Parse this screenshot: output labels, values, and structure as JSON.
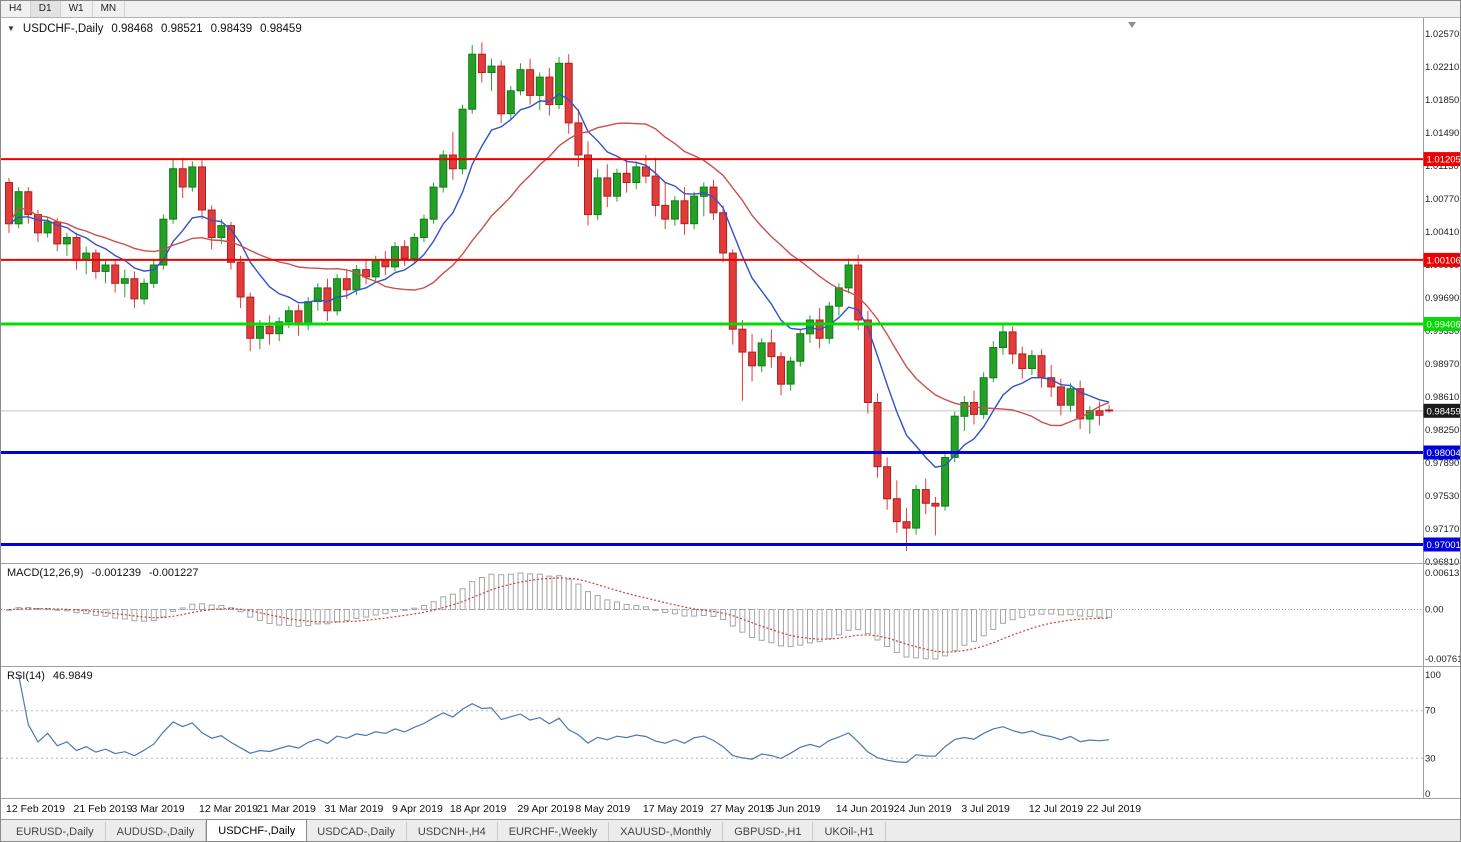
{
  "toolbar": {
    "timeframe_buttons": [
      "H4",
      "D1",
      "W1",
      "MN"
    ],
    "active_timeframe": "D1"
  },
  "symbol_info": {
    "direction_icon": "▼",
    "symbol": "USDCHF-,Daily",
    "open": "0.98468",
    "high": "0.98521",
    "low": "0.98439",
    "close": "0.98459"
  },
  "indicators": {
    "macd": {
      "name": "MACD(12,26,9)",
      "value_main": "-0.001239",
      "value_signal": "-0.001227"
    },
    "rsi": {
      "name": "RSI(14)",
      "value": "46.9849"
    }
  },
  "tabs": [
    {
      "label": "EURUSD-,Daily",
      "active": false
    },
    {
      "label": "AUDUSD-,Daily",
      "active": false
    },
    {
      "label": "USDCHF-,Daily",
      "active": true
    },
    {
      "label": "USDCAD-,Daily",
      "active": false
    },
    {
      "label": "USDCNH-,H4",
      "active": false
    },
    {
      "label": "EURCHF-,Weekly",
      "active": false
    },
    {
      "label": "XAUUSD-,Monthly",
      "active": false
    },
    {
      "label": "GBPUSD-,H1",
      "active": false
    },
    {
      "label": "UKOil-,H1",
      "active": false
    }
  ],
  "chart_data": {
    "type": "candlestick",
    "title": "USDCHF-,Daily",
    "candles": [
      [
        1.0095,
        1.01,
        1.004,
        1.005
      ],
      [
        1.005,
        1.009,
        1.0045,
        1.0085
      ],
      [
        1.0085,
        1.009,
        1.005,
        1.006
      ],
      [
        1.006,
        1.0065,
        1.003,
        1.004
      ],
      [
        1.004,
        1.0058,
        1.0035,
        1.0052
      ],
      [
        1.0052,
        1.0056,
        1.002,
        1.0028
      ],
      [
        1.0028,
        1.004,
        1.0015,
        1.0035
      ],
      [
        1.0035,
        1.004,
        1.0,
        1.001
      ],
      [
        1.001,
        1.0025,
        0.9995,
        1.0018
      ],
      [
        1.0018,
        1.0022,
        0.999,
        0.9998
      ],
      [
        0.9998,
        1.001,
        0.9985,
        1.0005
      ],
      [
        1.0005,
        1.001,
        0.9975,
        0.9985
      ],
      [
        0.9985,
        1.0,
        0.997,
        0.999
      ],
      [
        0.999,
        0.9998,
        0.9958,
        0.9968
      ],
      [
        0.9968,
        0.999,
        0.9962,
        0.9985
      ],
      [
        0.9985,
        1.001,
        0.998,
        1.0005
      ],
      [
        1.0005,
        1.006,
        1.0,
        1.0055
      ],
      [
        1.0055,
        1.012,
        1.005,
        1.011
      ],
      [
        1.011,
        1.0122,
        1.0078,
        1.009
      ],
      [
        1.009,
        1.0118,
        1.0085,
        1.0112
      ],
      [
        1.0112,
        1.0121,
        1.0055,
        1.0065
      ],
      [
        1.0065,
        1.007,
        1.0022,
        1.0035
      ],
      [
        1.0035,
        1.0055,
        1.0028,
        1.0048
      ],
      [
        1.0048,
        1.0052,
        1.0,
        1.0008
      ],
      [
        1.0008,
        1.0015,
        0.9958,
        0.997
      ],
      [
        0.997,
        0.9975,
        0.9911,
        0.9925
      ],
      [
        0.9925,
        0.9945,
        0.9913,
        0.9938
      ],
      [
        0.9938,
        0.995,
        0.9918,
        0.993
      ],
      [
        0.993,
        0.9948,
        0.9922,
        0.9943
      ],
      [
        0.9943,
        0.996,
        0.9936,
        0.9955
      ],
      [
        0.9955,
        0.9962,
        0.9928,
        0.994
      ],
      [
        0.994,
        0.997,
        0.9934,
        0.9965
      ],
      [
        0.9965,
        0.9985,
        0.9955,
        0.998
      ],
      [
        0.998,
        0.999,
        0.9944,
        0.9955
      ],
      [
        0.9955,
        0.9995,
        0.995,
        0.999
      ],
      [
        0.999,
        1.0,
        0.9968,
        0.9978
      ],
      [
        0.9978,
        1.0005,
        0.9972,
        1.0
      ],
      [
        1.0,
        1.001,
        0.9984,
        0.9992
      ],
      [
        0.9992,
        1.0015,
        0.9987,
        1.001
      ],
      [
        1.001,
        1.002,
        0.9994,
        1.0003
      ],
      [
        1.0003,
        1.003,
        0.9998,
        1.0025
      ],
      [
        1.0025,
        1.0032,
        1.0004,
        1.0012
      ],
      [
        1.0012,
        1.004,
        1.0007,
        1.0035
      ],
      [
        1.0035,
        1.006,
        1.003,
        1.0055
      ],
      [
        1.0055,
        1.0095,
        1.005,
        1.009
      ],
      [
        1.009,
        1.013,
        1.0084,
        1.0125
      ],
      [
        1.0125,
        1.015,
        1.0098,
        1.011
      ],
      [
        1.011,
        1.018,
        1.0104,
        1.0175
      ],
      [
        1.0175,
        1.0245,
        1.017,
        1.0235
      ],
      [
        1.0235,
        1.0248,
        1.0204,
        1.0215
      ],
      [
        1.0215,
        1.023,
        1.0195,
        1.0222
      ],
      [
        1.0222,
        1.0228,
        1.016,
        1.017
      ],
      [
        1.017,
        1.02,
        1.0164,
        1.0195
      ],
      [
        1.0195,
        1.0225,
        1.019,
        1.0218
      ],
      [
        1.0218,
        1.023,
        1.018,
        1.019
      ],
      [
        1.019,
        1.0215,
        1.0174,
        1.021
      ],
      [
        1.021,
        1.022,
        1.0168,
        1.018
      ],
      [
        1.018,
        1.0232,
        1.0175,
        1.0225
      ],
      [
        1.0225,
        1.0235,
        1.0148,
        1.016
      ],
      [
        1.016,
        1.0175,
        1.0112,
        1.0125
      ],
      [
        1.0125,
        1.014,
        1.0048,
        1.006
      ],
      [
        1.006,
        1.011,
        1.0054,
        1.01
      ],
      [
        1.01,
        1.0115,
        1.0068,
        1.008
      ],
      [
        1.008,
        1.011,
        1.0074,
        1.0105
      ],
      [
        1.0105,
        1.012,
        1.0084,
        1.0095
      ],
      [
        1.0095,
        1.0118,
        1.0088,
        1.0112
      ],
      [
        1.0112,
        1.0125,
        1.0094,
        1.0102
      ],
      [
        1.0102,
        1.0122,
        1.0058,
        1.007
      ],
      [
        1.007,
        1.0095,
        1.0044,
        1.0055
      ],
      [
        1.0055,
        1.008,
        1.0048,
        1.0075
      ],
      [
        1.0075,
        1.009,
        1.0038,
        1.005
      ],
      [
        1.005,
        1.0085,
        1.0044,
        1.008
      ],
      [
        1.008,
        1.0095,
        1.0058,
        1.009
      ],
      [
        1.009,
        1.0098,
        1.0054,
        1.0062
      ],
      [
        1.0062,
        1.007,
        1.0008,
        1.0018
      ],
      [
        1.0018,
        1.0022,
        0.9918,
        0.9935
      ],
      [
        0.9935,
        0.9945,
        0.9857,
        0.991
      ],
      [
        0.991,
        0.993,
        0.9878,
        0.9895
      ],
      [
        0.9895,
        0.9925,
        0.9888,
        0.992
      ],
      [
        0.992,
        0.9935,
        0.9893,
        0.9905
      ],
      [
        0.9905,
        0.991,
        0.9863,
        0.9875
      ],
      [
        0.9875,
        0.9905,
        0.9868,
        0.99
      ],
      [
        0.99,
        0.9935,
        0.9894,
        0.993
      ],
      [
        0.993,
        0.995,
        0.992,
        0.9945
      ],
      [
        0.9945,
        0.9958,
        0.9914,
        0.9925
      ],
      [
        0.9925,
        0.9965,
        0.9919,
        0.996
      ],
      [
        0.996,
        0.9985,
        0.995,
        0.998
      ],
      [
        0.998,
        1.0012,
        0.9974,
        1.0005
      ],
      [
        1.0005,
        1.0016,
        0.9934,
        0.9945
      ],
      [
        0.9945,
        0.9955,
        0.9843,
        0.9855
      ],
      [
        0.9855,
        0.9865,
        0.9773,
        0.9785
      ],
      [
        0.9785,
        0.9795,
        0.9738,
        0.975
      ],
      [
        0.975,
        0.977,
        0.9713,
        0.9725
      ],
      [
        0.9725,
        0.974,
        0.9693,
        0.9718
      ],
      [
        0.9718,
        0.9765,
        0.9711,
        0.976
      ],
      [
        0.976,
        0.9772,
        0.9733,
        0.9745
      ],
      [
        0.9745,
        0.9752,
        0.971,
        0.9742
      ],
      [
        0.9742,
        0.98,
        0.9737,
        0.9795
      ],
      [
        0.9795,
        0.9845,
        0.979,
        0.984
      ],
      [
        0.984,
        0.9862,
        0.9824,
        0.9855
      ],
      [
        0.9855,
        0.9868,
        0.9831,
        0.9842
      ],
      [
        0.9842,
        0.9888,
        0.9837,
        0.9882
      ],
      [
        0.9882,
        0.9922,
        0.9877,
        0.9915
      ],
      [
        0.9915,
        0.9941,
        0.9907,
        0.9932
      ],
      [
        0.9932,
        0.9938,
        0.9897,
        0.9908
      ],
      [
        0.9908,
        0.9916,
        0.9881,
        0.9892
      ],
      [
        0.9892,
        0.9912,
        0.9885,
        0.9906
      ],
      [
        0.9906,
        0.9913,
        0.9871,
        0.9882
      ],
      [
        0.9882,
        0.9896,
        0.9861,
        0.9872
      ],
      [
        0.9872,
        0.9881,
        0.9841,
        0.9852
      ],
      [
        0.9852,
        0.9876,
        0.9845,
        0.987
      ],
      [
        0.987,
        0.9879,
        0.9826,
        0.9837
      ],
      [
        0.9837,
        0.9851,
        0.9821,
        0.9846
      ],
      [
        0.9846,
        0.9856,
        0.983,
        0.9841
      ],
      [
        0.98468,
        0.98521,
        0.98439,
        0.98459
      ]
    ],
    "x_labels": [
      {
        "label": "12 Feb 2019",
        "index": 0
      },
      {
        "label": "21 Feb 2019",
        "index": 7
      },
      {
        "label": "3 Mar 2019",
        "index": 13
      },
      {
        "label": "12 Mar 2019",
        "index": 20
      },
      {
        "label": "21 Mar 2019",
        "index": 26
      },
      {
        "label": "31 Mar 2019",
        "index": 33
      },
      {
        "label": "9 Apr 2019",
        "index": 40
      },
      {
        "label": "18 Apr 2019",
        "index": 46
      },
      {
        "label": "29 Apr 2019",
        "index": 53
      },
      {
        "label": "8 May 2019",
        "index": 59
      },
      {
        "label": "17 May 2019",
        "index": 66
      },
      {
        "label": "27 May 2019",
        "index": 73
      },
      {
        "label": "5 Jun 2019",
        "index": 79
      },
      {
        "label": "14 Jun 2019",
        "index": 86
      },
      {
        "label": "24 Jun 2019",
        "index": 92
      },
      {
        "label": "3 Jul 2019",
        "index": 99
      },
      {
        "label": "12 Jul 2019",
        "index": 106
      },
      {
        "label": "22 Jul 2019",
        "index": 112
      }
    ],
    "y_axis_labels": [
      "1.02570",
      "1.02210",
      "1.01850",
      "1.01490",
      "1.01130",
      "1.00770",
      "1.00410",
      "1.00050",
      "0.99690",
      "0.99330",
      "0.98970",
      "0.98610",
      "0.98250",
      "0.97890",
      "0.97530",
      "0.97170",
      "0.96810"
    ],
    "hlines": [
      {
        "price": 1.01205,
        "label": "1.01205",
        "color": "#ee0000",
        "width": 2
      },
      {
        "price": 1.00106,
        "label": "1.00106",
        "color": "#ee0000",
        "width": 2
      },
      {
        "price": 0.99406,
        "label": "0.99406",
        "color": "#00dd00",
        "width": 3
      },
      {
        "price": 0.98004,
        "label": "0.98004",
        "color": "#0000dd",
        "width": 3
      },
      {
        "price": 0.97001,
        "label": "0.97001",
        "color": "#0000dd",
        "width": 3
      }
    ],
    "current_price": {
      "price": 0.98459,
      "label": "0.98459",
      "line_color": "#c4c4c4",
      "badge_color": "#1a1a1a"
    },
    "moving_averages": [
      {
        "type": "ema",
        "period": 9,
        "color": "#3152c8"
      },
      {
        "type": "sma",
        "period": 20,
        "color": "#c9504e"
      }
    ],
    "macd": {
      "fast": 12,
      "slow": 26,
      "signal_period": 9,
      "axis_labels": [
        "0.00613",
        "0.00",
        "-0.00761"
      ],
      "histogram_color": "#a6a6a6",
      "signal_color": "#d23f3f"
    },
    "rsi": {
      "period": 14,
      "color": "#4878b8",
      "levels": [
        70,
        30
      ],
      "axis_labels": [
        {
          "label": "100",
          "value": 100
        },
        {
          "label": "70",
          "value": 70
        },
        {
          "label": "30",
          "value": 30
        },
        {
          "label": "0",
          "value": 0
        }
      ]
    },
    "colors": {
      "up": "#23a127",
      "up_border": "#147a18",
      "down": "#e13b3b",
      "down_border": "#b02020"
    }
  }
}
